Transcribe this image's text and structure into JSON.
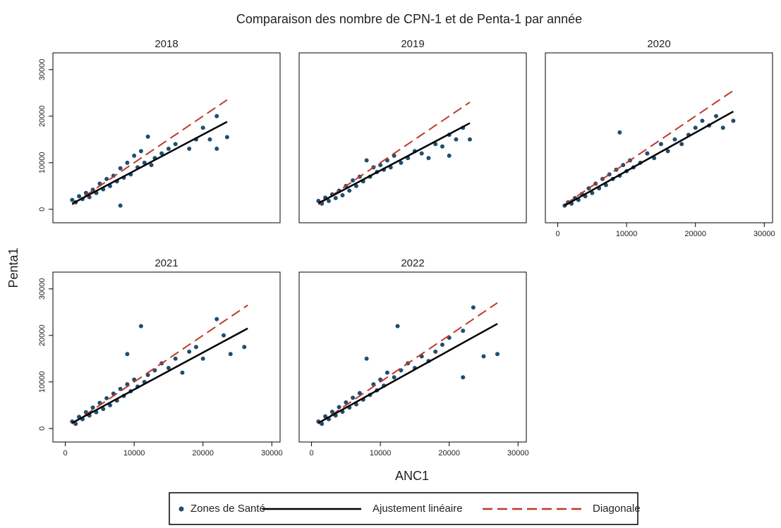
{
  "title": "Comparaison des nombre de CPN-1 et de Penta-1 par année",
  "x_label": "ANC1",
  "y_label": "Penta1",
  "legend": [
    {
      "name": "Zones de Santé",
      "color": "#1f4e6e",
      "style": "point"
    },
    {
      "name": "Ajustement linéaire",
      "color": "#000000",
      "style": "solid"
    },
    {
      "name": "Diagonale",
      "color": "#c0392b",
      "style": "dashed"
    }
  ],
  "chart_data": [
    {
      "type": "scatter",
      "title": "2018",
      "xlim": [
        -1800,
        31200
      ],
      "ylim": [
        -2900,
        33600
      ],
      "yticks": [
        0,
        10000,
        20000,
        30000
      ],
      "points": {
        "x": [
          1000,
          1500,
          2000,
          2500,
          3000,
          3500,
          4000,
          4500,
          5000,
          5500,
          6000,
          6500,
          7000,
          7500,
          8000,
          8000,
          8500,
          9000,
          9500,
          10000,
          10500,
          11000,
          11500,
          12000,
          12500,
          13000,
          14000,
          15000,
          16000,
          18000,
          19000,
          20000,
          22000,
          22000,
          23500,
          21000
        ],
        "y": [
          2000,
          1500,
          2800,
          2200,
          3500,
          2600,
          4200,
          3500,
          5500,
          4300,
          6500,
          5000,
          7200,
          6000,
          800,
          8800,
          6800,
          10000,
          7500,
          11500,
          9000,
          12500,
          10000,
          15600,
          9500,
          11000,
          12000,
          13000,
          14000,
          13000,
          15000,
          17500,
          20000,
          13000,
          15500,
          15000
        ]
      },
      "fit": {
        "x": [
          1000,
          23500
        ],
        "y": [
          1200,
          18800
        ]
      },
      "diagonal": {
        "x": [
          1000,
          23500
        ],
        "y": [
          1000,
          23500
        ]
      }
    },
    {
      "type": "scatter",
      "title": "2019",
      "xlim": [
        -1800,
        31200
      ],
      "ylim": [
        -2900,
        33600
      ],
      "points": {
        "x": [
          1000,
          1500,
          2000,
          2500,
          3000,
          3500,
          4000,
          4500,
          5000,
          5500,
          6000,
          6500,
          7000,
          7500,
          8000,
          8500,
          9000,
          9500,
          10000,
          10500,
          11000,
          11500,
          12000,
          13000,
          14000,
          15000,
          16000,
          17000,
          18000,
          19000,
          20000,
          21000,
          22000,
          23000,
          20000
        ],
        "y": [
          1800,
          1200,
          2500,
          1800,
          3200,
          2400,
          4000,
          3000,
          5000,
          4000,
          6200,
          5000,
          7000,
          6000,
          10500,
          7000,
          9000,
          8000,
          9500,
          8500,
          10500,
          9000,
          11500,
          10000,
          11000,
          12500,
          12000,
          11000,
          14000,
          13500,
          16000,
          15000,
          17500,
          15000,
          11500
        ]
      },
      "fit": {
        "x": [
          1000,
          23000
        ],
        "y": [
          1300,
          18500
        ]
      },
      "diagonal": {
        "x": [
          1000,
          23000
        ],
        "y": [
          1000,
          23000
        ]
      }
    },
    {
      "type": "scatter",
      "title": "2020",
      "xlim": [
        -1800,
        31200
      ],
      "ylim": [
        -2900,
        33600
      ],
      "xticks": [
        0,
        10000,
        20000,
        30000
      ],
      "points": {
        "x": [
          1000,
          1500,
          2000,
          2500,
          3000,
          3500,
          4000,
          4500,
          5000,
          5500,
          6000,
          6500,
          7000,
          7500,
          8000,
          8500,
          9000,
          9500,
          10000,
          10500,
          11000,
          12000,
          13000,
          14000,
          15000,
          16000,
          17000,
          18000,
          19000,
          20000,
          21000,
          22000,
          23000,
          24000,
          25500,
          9000
        ],
        "y": [
          800,
          1500,
          1200,
          2400,
          2000,
          3300,
          2800,
          4500,
          3500,
          5500,
          4500,
          6500,
          5200,
          7500,
          6500,
          8500,
          7200,
          9500,
          8200,
          10500,
          9000,
          10000,
          12000,
          11000,
          14000,
          12500,
          15000,
          14000,
          16000,
          17500,
          19000,
          18000,
          20000,
          17500,
          19000,
          16500
        ]
      },
      "fit": {
        "x": [
          1000,
          25500
        ],
        "y": [
          800,
          21000
        ]
      },
      "diagonal": {
        "x": [
          1000,
          25500
        ],
        "y": [
          1000,
          25500
        ]
      }
    },
    {
      "type": "scatter",
      "title": "2021",
      "xlim": [
        -1800,
        31200
      ],
      "ylim": [
        -2900,
        33600
      ],
      "xticks": [
        0,
        10000,
        20000,
        30000
      ],
      "yticks": [
        0,
        10000,
        20000,
        30000
      ],
      "points": {
        "x": [
          1000,
          1500,
          2000,
          2500,
          3000,
          3500,
          4000,
          4500,
          5000,
          5500,
          6000,
          6500,
          7000,
          7500,
          8000,
          8500,
          9000,
          9500,
          10000,
          10500,
          11000,
          11500,
          12000,
          13000,
          14000,
          15000,
          16000,
          17000,
          18000,
          19000,
          20000,
          22000,
          23000,
          24000,
          26000,
          9000
        ],
        "y": [
          1500,
          1000,
          2500,
          2000,
          3500,
          2800,
          4500,
          3500,
          5500,
          4200,
          6500,
          5000,
          7500,
          6000,
          8500,
          7000,
          9500,
          8000,
          10500,
          9000,
          22000,
          10000,
          11500,
          12500,
          14000,
          13000,
          15000,
          12000,
          16500,
          17500,
          15000,
          23500,
          20000,
          16000,
          17500,
          16000
        ]
      },
      "fit": {
        "x": [
          1000,
          26500
        ],
        "y": [
          1200,
          21500
        ]
      },
      "diagonal": {
        "x": [
          1000,
          26500
        ],
        "y": [
          1000,
          26500
        ]
      }
    },
    {
      "type": "scatter",
      "title": "2022",
      "xlim": [
        -1800,
        31200
      ],
      "ylim": [
        -2900,
        33600
      ],
      "xticks": [
        0,
        10000,
        20000,
        30000
      ],
      "points": {
        "x": [
          1000,
          1500,
          2000,
          2500,
          3000,
          3500,
          4000,
          4500,
          5000,
          5500,
          6000,
          6500,
          7000,
          7500,
          8000,
          8500,
          9000,
          9500,
          10000,
          10500,
          11000,
          12000,
          12500,
          13000,
          14000,
          15000,
          16000,
          17000,
          18000,
          19000,
          20000,
          22000,
          22000,
          23500,
          25000,
          27000
        ],
        "y": [
          1500,
          1000,
          2600,
          2000,
          3600,
          2800,
          4600,
          3600,
          5600,
          4500,
          6600,
          5200,
          7600,
          6200,
          15000,
          7200,
          9500,
          8200,
          10500,
          9200,
          12000,
          11000,
          22000,
          12500,
          14000,
          13000,
          15500,
          14500,
          16500,
          18000,
          19500,
          11000,
          21000,
          26000,
          15500,
          16000
        ]
      },
      "fit": {
        "x": [
          1000,
          27000
        ],
        "y": [
          1200,
          22500
        ]
      },
      "diagonal": {
        "x": [
          1000,
          27000
        ],
        "y": [
          1000,
          27000
        ]
      }
    }
  ]
}
